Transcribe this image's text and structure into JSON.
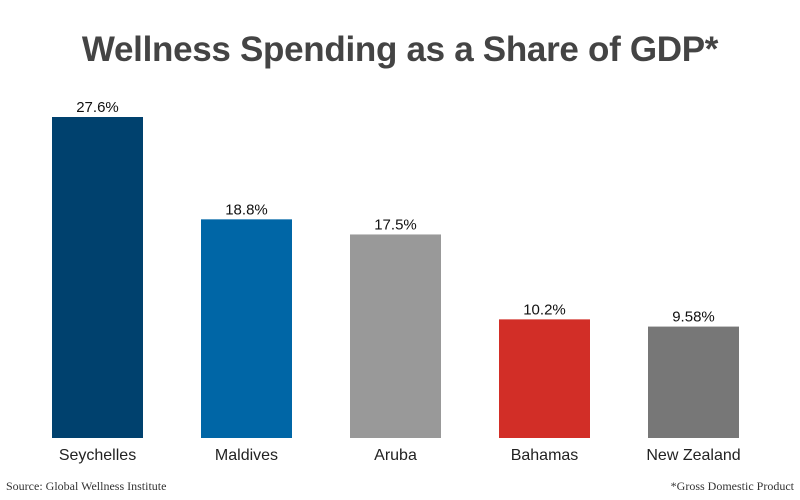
{
  "chart_data": {
    "type": "bar",
    "title": "Wellness Spending as a Share of GDP*",
    "categories": [
      "Seychelles",
      "Maldives",
      "Aruba",
      "Bahamas",
      "New Zealand"
    ],
    "values": [
      27.6,
      18.8,
      17.5,
      10.2,
      9.58
    ],
    "data_labels": [
      "27.6%",
      "18.8%",
      "17.5%",
      "10.2%",
      "9.58%"
    ],
    "colors": [
      "#00416e",
      "#0066a6",
      "#999999",
      "#d22e27",
      "#777777"
    ],
    "xlabel": "",
    "ylabel": "",
    "ylim": [
      0,
      27.6
    ],
    "grid": false,
    "legend": "none"
  },
  "footer": {
    "source": "Source: Global Wellness Institute",
    "note": "*Gross Domestic Product"
  }
}
